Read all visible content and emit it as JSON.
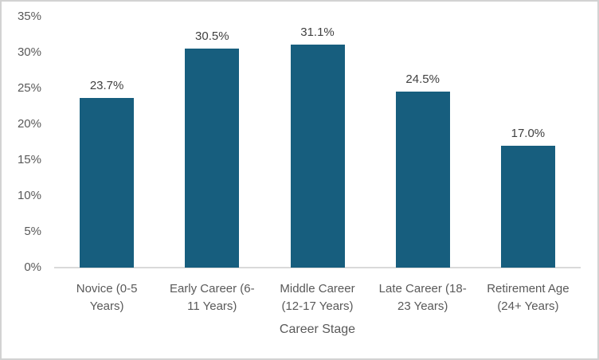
{
  "chart_data": {
    "type": "bar",
    "title": "",
    "xlabel": "Career Stage",
    "ylabel": "",
    "ylim": [
      0,
      35
    ],
    "grid": false,
    "legend": null,
    "categories": [
      "Novice (0-5\nYears)",
      "Early Career (6-\n11 Years)",
      "Middle Career\n(12-17 Years)",
      "Late Career (18-\n23 Years)",
      "Retirement Age\n(24+ Years)"
    ],
    "values": [
      23.7,
      30.5,
      31.1,
      24.5,
      17.0
    ],
    "value_labels": [
      "23.7%",
      "30.5%",
      "31.1%",
      "24.5%",
      "17.0%"
    ],
    "yticks": [
      {
        "value": 0,
        "label": "0%"
      },
      {
        "value": 5,
        "label": "5%"
      },
      {
        "value": 10,
        "label": "10%"
      },
      {
        "value": 15,
        "label": "15%"
      },
      {
        "value": 20,
        "label": "20%"
      },
      {
        "value": 25,
        "label": "25%"
      },
      {
        "value": 30,
        "label": "30%"
      },
      {
        "value": 35,
        "label": "35%"
      }
    ],
    "colors": {
      "bar": "#175E7E",
      "value_label_text": "#404040",
      "axis_text": "#595959",
      "axis_line": "#d9d9d9",
      "frame_border": "#d2d2d2",
      "background": "#ffffff"
    }
  }
}
